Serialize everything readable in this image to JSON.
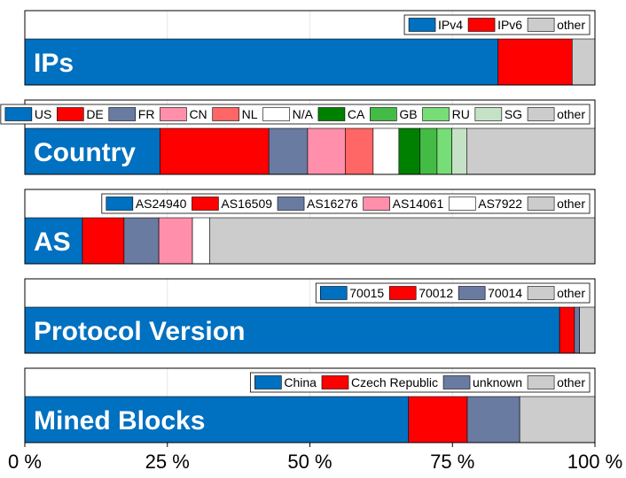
{
  "chart_data": [
    {
      "type": "bar",
      "title": "IPs",
      "segments": [
        {
          "name": "IPv4",
          "value": 83.0,
          "color": "#0070C0",
          "legend": true
        },
        {
          "name": "IPv6",
          "value": 13.0,
          "color": "#FF0000",
          "legend": true
        },
        {
          "name": "other",
          "value": 4.0,
          "color": "#CCCCCC",
          "legend": true
        }
      ]
    },
    {
      "type": "bar",
      "title": "Country",
      "segments": [
        {
          "name": "US",
          "value": 23.7,
          "color": "#0070C0",
          "legend": true
        },
        {
          "name": "DE",
          "value": 19.1,
          "color": "#FF0000",
          "legend": true
        },
        {
          "name": "FR",
          "value": 6.8,
          "color": "#6A7BA2",
          "legend": true
        },
        {
          "name": "CN",
          "value": 6.6,
          "color": "#FF8FAB",
          "legend": true
        },
        {
          "name": "NL",
          "value": 4.9,
          "color": "#FF6666",
          "legend": true
        },
        {
          "name": "N/A",
          "value": 4.5,
          "color": "#FFFFFF",
          "legend": true
        },
        {
          "name": "CA",
          "value": 3.7,
          "color": "#008000",
          "legend": true
        },
        {
          "name": "GB",
          "value": 3.0,
          "color": "#44BB44",
          "legend": true
        },
        {
          "name": "RU",
          "value": 2.6,
          "color": "#77DD77",
          "legend": true
        },
        {
          "name": "SG",
          "value": 2.6,
          "color": "#C6E2C6",
          "legend": true
        },
        {
          "name": "other",
          "value": 22.5,
          "color": "#CCCCCC",
          "legend": true
        }
      ]
    },
    {
      "type": "bar",
      "title": "AS",
      "segments": [
        {
          "name": "AS24940",
          "value": 10.1,
          "color": "#0070C0",
          "legend": true
        },
        {
          "name": "AS16509",
          "value": 7.3,
          "color": "#FF0000",
          "legend": true
        },
        {
          "name": "AS16276",
          "value": 6.1,
          "color": "#6A7BA2",
          "legend": true
        },
        {
          "name": "AS14061",
          "value": 5.9,
          "color": "#FF8FAB",
          "legend": true
        },
        {
          "name": "AS7922",
          "value": 3.0,
          "color": "#FFFFFF",
          "legend": true
        },
        {
          "name": "other",
          "value": 67.6,
          "color": "#CCCCCC",
          "legend": true
        }
      ]
    },
    {
      "type": "bar",
      "title": "Protocol Version",
      "segments": [
        {
          "name": "70015",
          "value": 93.8,
          "color": "#0070C0",
          "legend": true
        },
        {
          "name": "70012",
          "value": 2.6,
          "color": "#FF0000",
          "legend": true
        },
        {
          "name": "70014",
          "value": 0.9,
          "color": "#6A7BA2",
          "legend": true
        },
        {
          "name": "other",
          "value": 2.7,
          "color": "#CCCCCC",
          "legend": true
        }
      ]
    },
    {
      "type": "bar",
      "title": "Mined Blocks",
      "segments": [
        {
          "name": "China",
          "value": 67.3,
          "color": "#0070C0",
          "legend": true
        },
        {
          "name": "Czech Republic",
          "value": 10.3,
          "color": "#FF0000",
          "legend": true
        },
        {
          "name": "unknown",
          "value": 9.2,
          "color": "#6A7BA2",
          "legend": true
        },
        {
          "name": "other",
          "value": 13.2,
          "color": "#CCCCCC",
          "legend": true
        }
      ]
    }
  ],
  "x_axis": {
    "range": [
      0,
      100
    ],
    "ticks": [
      0,
      25,
      50,
      75,
      100
    ],
    "tick_labels": [
      "0 %",
      "25 %",
      "50 %",
      "75 %",
      "100 %"
    ],
    "grid": true
  }
}
